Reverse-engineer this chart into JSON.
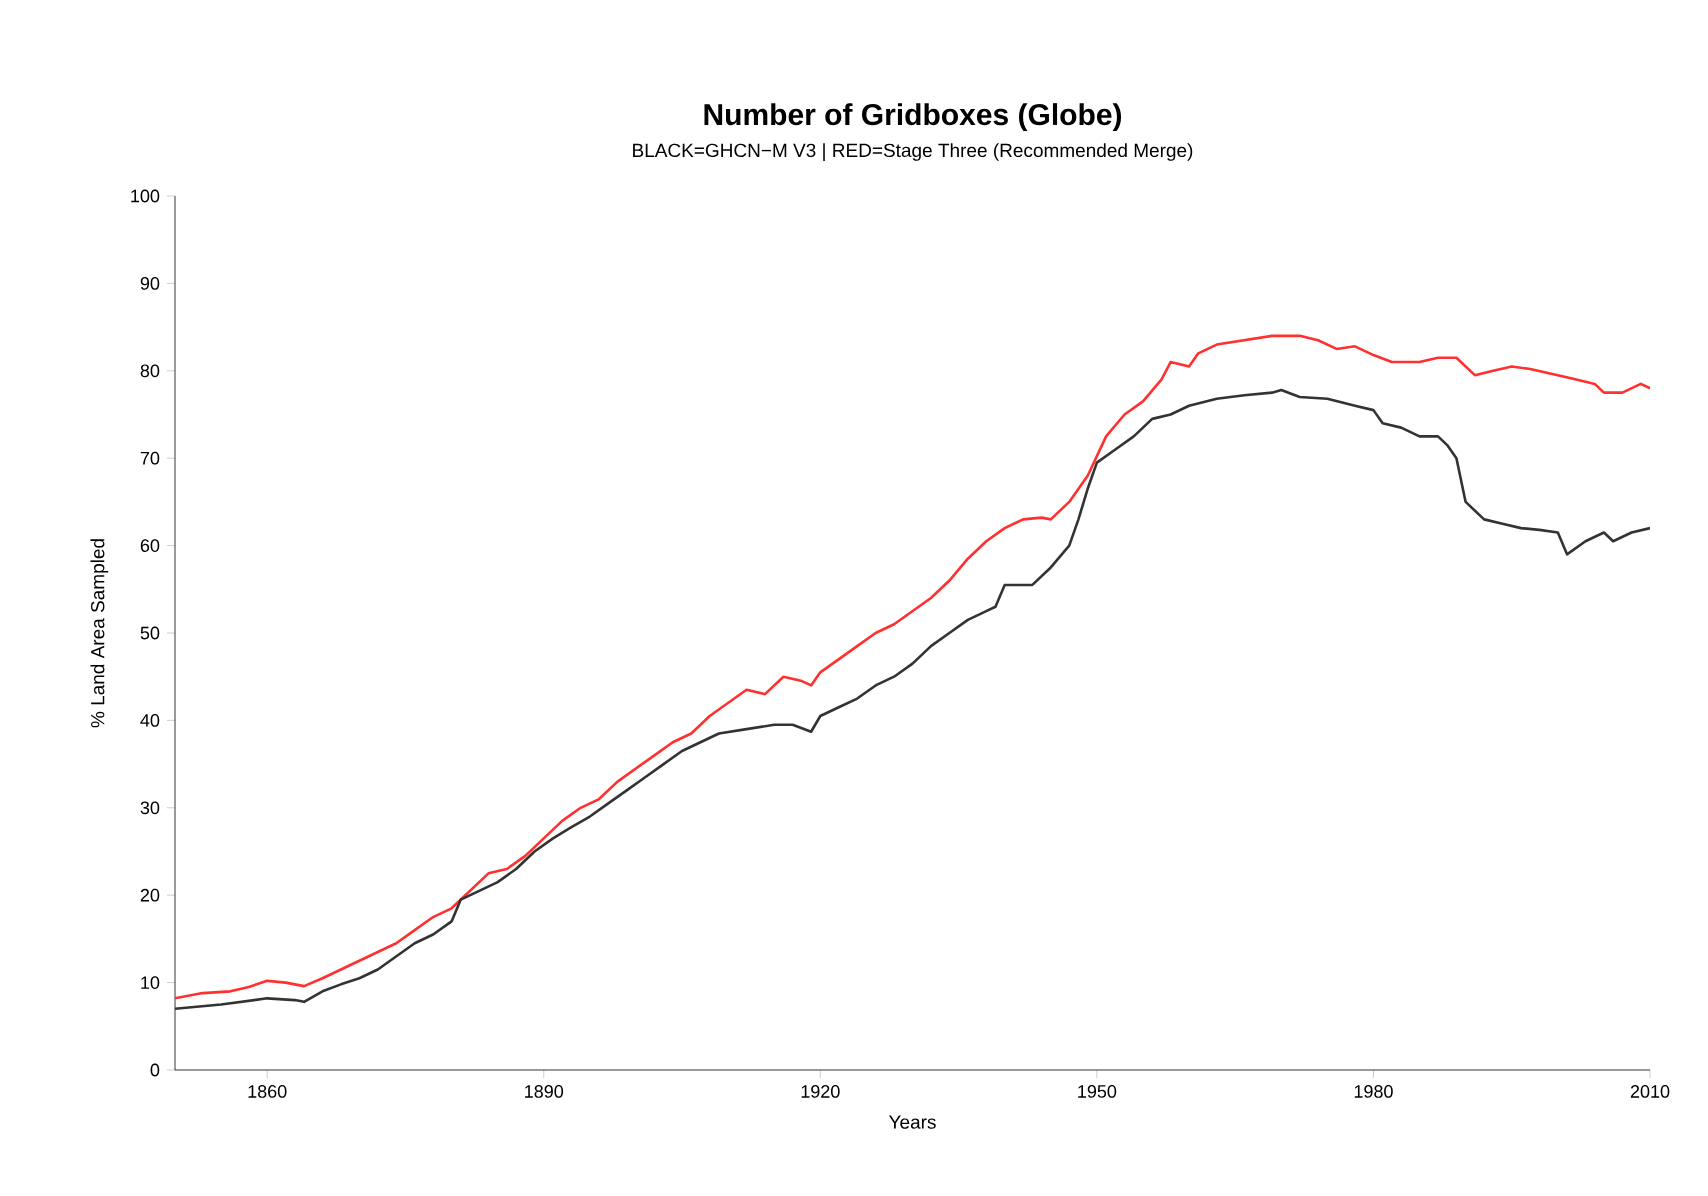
{
  "chart_data": {
    "type": "line",
    "title": "Number of Gridboxes (Globe)",
    "subtitle": "BLACK=GHCN−M V3 | RED=Stage Three (Recommended Merge)",
    "xlabel": "Years",
    "ylabel": "% Land Area Sampled",
    "xlim": [
      1850,
      2010
    ],
    "ylim": [
      0,
      100
    ],
    "xticks": [
      1860,
      1890,
      1920,
      1950,
      1980,
      2010
    ],
    "yticks": [
      0,
      10,
      20,
      30,
      40,
      50,
      60,
      70,
      80,
      90,
      100
    ],
    "grid": false,
    "series": [
      {
        "color": "#ff3030",
        "x": [
          1850,
          1853,
          1856,
          1858,
          1860,
          1862,
          1864,
          1866,
          1868,
          1870,
          1872,
          1874,
          1876,
          1878,
          1880,
          1882,
          1884,
          1886,
          1888,
          1890,
          1892,
          1894,
          1896,
          1898,
          1900,
          1902,
          1904,
          1906,
          1908,
          1910,
          1912,
          1914,
          1916,
          1918,
          1919,
          1920,
          1922,
          1924,
          1926,
          1928,
          1930,
          1932,
          1934,
          1936,
          1938,
          1940,
          1942,
          1944,
          1945,
          1947,
          1949,
          1951,
          1953,
          1955,
          1957,
          1958,
          1960,
          1961,
          1963,
          1966,
          1969,
          1972,
          1974,
          1976,
          1978,
          1980,
          1982,
          1985,
          1987,
          1989,
          1991,
          1993,
          1995,
          1997,
          2000,
          2002,
          2004,
          2005,
          2007,
          2009,
          2010
        ],
        "values": [
          8.2,
          8.8,
          9,
          9.5,
          10.2,
          10,
          9.6,
          10.5,
          11.5,
          12.5,
          13.5,
          14.5,
          16,
          17.5,
          18.5,
          20.5,
          22.5,
          23,
          24.5,
          26.5,
          28.5,
          30,
          31,
          33,
          34.5,
          36,
          37.5,
          38.5,
          40.5,
          42,
          43.5,
          43,
          45,
          44.5,
          44,
          45.5,
          47,
          48.5,
          50,
          51,
          52.5,
          54,
          56,
          58.5,
          60.5,
          62,
          63,
          63.2,
          63,
          65,
          68,
          72.5,
          75,
          76.5,
          79,
          81,
          80.5,
          82,
          83,
          83.5,
          84,
          84,
          83.5,
          82.5,
          82.8,
          81.8,
          81,
          81,
          81.5,
          81.5,
          79.5,
          80,
          80.5,
          80.2,
          79.5,
          79,
          78.5,
          77.5,
          77.5,
          78.5,
          78
        ]
      },
      {
        "color": "#333333",
        "x": [
          1850,
          1855,
          1860,
          1863,
          1864,
          1866,
          1868,
          1870,
          1872,
          1874,
          1876,
          1878,
          1880,
          1881,
          1883,
          1885,
          1887,
          1889,
          1891,
          1893,
          1895,
          1897,
          1899,
          1901,
          1903,
          1905,
          1907,
          1909,
          1912,
          1915,
          1917,
          1919,
          1920,
          1922,
          1924,
          1926,
          1928,
          1930,
          1932,
          1934,
          1936,
          1938,
          1939,
          1940,
          1942,
          1943,
          1945,
          1947,
          1948,
          1949,
          1950,
          1952,
          1954,
          1956,
          1958,
          1960,
          1963,
          1966,
          1969,
          1970,
          1972,
          1975,
          1978,
          1980,
          1981,
          1983,
          1985,
          1987,
          1988,
          1989,
          1990,
          1992,
          1994,
          1996,
          1998,
          2000,
          2001,
          2003,
          2005,
          2006,
          2008,
          2010
        ],
        "values": [
          7,
          7.5,
          8.2,
          8,
          7.8,
          9,
          9.8,
          10.5,
          11.5,
          13,
          14.5,
          15.5,
          17,
          19.5,
          20.5,
          21.5,
          23,
          25,
          26.5,
          27.8,
          29,
          30.5,
          32,
          33.5,
          35,
          36.5,
          37.5,
          38.5,
          39,
          39.5,
          39.5,
          38.7,
          40.5,
          41.5,
          42.5,
          44,
          45,
          46.5,
          48.5,
          50,
          51.5,
          52.5,
          53,
          55.5,
          55.5,
          55.5,
          57.5,
          60,
          63,
          66.5,
          69.5,
          71,
          72.5,
          74.5,
          75,
          76,
          76.8,
          77.2,
          77.5,
          77.8,
          77,
          76.8,
          76,
          75.5,
          74,
          73.5,
          72.5,
          72.5,
          71.5,
          70,
          65,
          63,
          62.5,
          62,
          61.8,
          61.5,
          59,
          60.5,
          61.5,
          60.5,
          61.5,
          62
        ]
      }
    ]
  }
}
